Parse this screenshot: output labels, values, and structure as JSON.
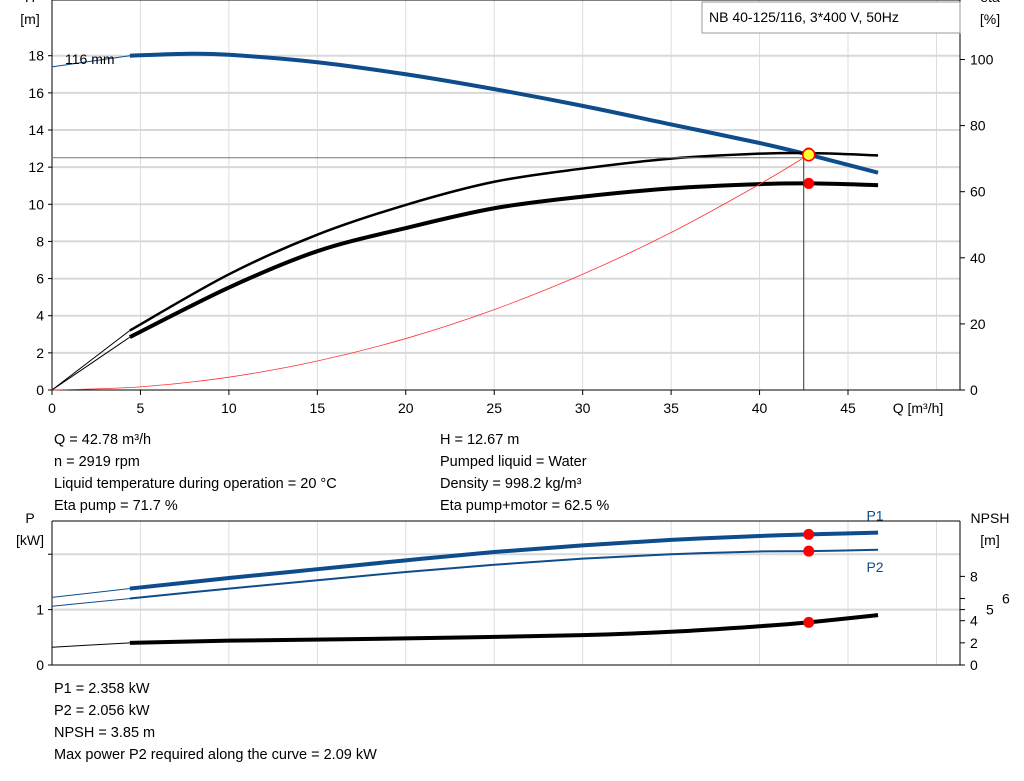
{
  "title_box": "NB 40-125/116, 3*400 V, 50Hz",
  "colors": {
    "head": "#0e4c8c",
    "eta": "#000000",
    "system": "#ff3333",
    "point": "#ff0000",
    "duty_point_fill": "#ffff33",
    "grid": "#dddddd"
  },
  "chart_data": [
    {
      "type": "line",
      "title": "NB 40-125/116, 3*400 V, 50Hz",
      "xlabel": "Q [m³/h]",
      "xlim": [
        0,
        50
      ],
      "xticks": [
        0,
        5,
        10,
        15,
        20,
        25,
        30,
        35,
        40,
        45
      ],
      "ylabel_left": "H",
      "ylabel_left_unit": "[m]",
      "ylim_left": [
        0,
        21
      ],
      "yticks_left": [
        0,
        2,
        4,
        6,
        8,
        10,
        12,
        14,
        16,
        18
      ],
      "ylabel_right": "eta",
      "ylabel_right_unit": "[%]",
      "ylim_right": [
        0,
        118
      ],
      "yticks_right": [
        0,
        20,
        40,
        60,
        80,
        100
      ],
      "grid": true,
      "curve_label": "116 mm",
      "series": [
        {
          "key": "head",
          "axis": "left",
          "x": [
            0,
            4.4,
            7.5,
            10,
            15,
            20,
            25,
            30,
            35,
            40,
            42.78,
            46.7
          ],
          "y": [
            17.4,
            18.0,
            18.1,
            18.05,
            17.65,
            17.0,
            16.2,
            15.3,
            14.3,
            13.3,
            12.67,
            11.7
          ]
        },
        {
          "key": "eta_pump",
          "axis": "right",
          "x": [
            0,
            4.4,
            10,
            15,
            20,
            25,
            30,
            35,
            40,
            42.78,
            46.7
          ],
          "y": [
            0,
            18,
            35,
            47,
            56,
            63,
            67,
            70,
            71.5,
            71.7,
            71
          ]
        },
        {
          "key": "eta_pump_motor",
          "axis": "right",
          "x": [
            0,
            4.4,
            10,
            15,
            20,
            25,
            30,
            35,
            40,
            42.78,
            46.7
          ],
          "y": [
            0,
            16,
            31,
            42,
            49,
            55,
            58.5,
            61,
            62.3,
            62.5,
            62
          ]
        },
        {
          "key": "system",
          "axis": "left",
          "x": [
            0,
            5,
            10,
            15,
            20,
            25,
            30,
            35,
            40,
            42.78
          ],
          "y": [
            0,
            0.17,
            0.69,
            1.56,
            2.77,
            4.33,
            6.23,
            8.48,
            11.08,
            12.67
          ]
        }
      ],
      "duty_point": {
        "Q": 42.78,
        "H": 12.67,
        "eta_pump": 71.7,
        "eta_pump_motor": 62.5
      }
    },
    {
      "type": "line",
      "xlim": [
        0,
        50
      ],
      "ylabel_left": "P",
      "ylabel_left_unit": "[kW]",
      "ylim_left": [
        0,
        2.6
      ],
      "yticks_left": [
        0,
        1,
        2
      ],
      "yticklabels_left": [
        "0",
        "1",
        ""
      ],
      "ylabel_right": "NPSH",
      "ylabel_right_unit": "[m]",
      "ylim_right": [
        0,
        13
      ],
      "yticks_right": [
        0,
        2,
        4,
        5,
        6,
        8
      ],
      "grid": true,
      "series": [
        {
          "name": "P1",
          "key": "p1",
          "axis": "left",
          "x": [
            0,
            4.4,
            10,
            15,
            20,
            25,
            30,
            35,
            40,
            42.78,
            46.7
          ],
          "y": [
            1.22,
            1.38,
            1.57,
            1.73,
            1.89,
            2.04,
            2.16,
            2.26,
            2.33,
            2.358,
            2.39
          ]
        },
        {
          "name": "P2",
          "key": "p2",
          "axis": "left",
          "x": [
            0,
            4.4,
            10,
            15,
            20,
            25,
            30,
            35,
            40,
            42.78,
            46.7
          ],
          "y": [
            1.06,
            1.2,
            1.38,
            1.53,
            1.68,
            1.81,
            1.92,
            2.0,
            2.05,
            2.056,
            2.08
          ]
        },
        {
          "key": "npsh",
          "axis": "right",
          "x": [
            0,
            4.4,
            10,
            20,
            30,
            35,
            40,
            42.78,
            46.7
          ],
          "y": [
            1.6,
            2.0,
            2.2,
            2.4,
            2.7,
            3.0,
            3.5,
            3.85,
            4.5
          ]
        }
      ],
      "duty_point": {
        "Q": 42.78,
        "P1": 2.358,
        "P2": 2.056,
        "NPSH": 3.85
      }
    }
  ],
  "info_top": {
    "left": [
      "Q = 42.78 m³/h",
      "n = 2919 rpm",
      "Liquid temperature during operation = 20 °C",
      "Eta pump = 71.7 %"
    ],
    "right": [
      "H = 12.67 m",
      "Pumped liquid = Water",
      "Density = 998.2 kg/m³",
      "Eta pump+motor = 62.5 %"
    ]
  },
  "info_bottom": [
    "P1 = 2.358 kW",
    "P2 = 2.056 kW",
    "NPSH = 3.85 m",
    "Max power P2 required along the curve = 2.09 kW"
  ]
}
